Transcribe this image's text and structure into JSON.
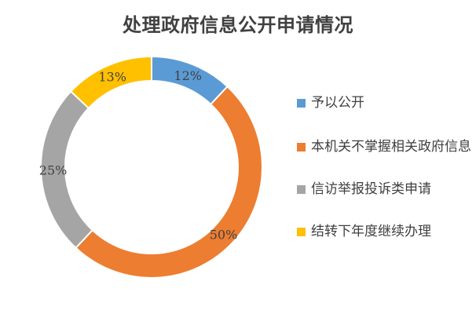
{
  "chart_data": {
    "type": "pie",
    "title": "处理政府信息公开申请情况",
    "donut": true,
    "slices": [
      {
        "label": "予以公开",
        "value": 12,
        "value_label": "12%",
        "color": "#5B9BD5"
      },
      {
        "label": "本机关不掌握相关政府信息",
        "value": 50,
        "value_label": "50%",
        "color": "#ED7D31"
      },
      {
        "label": "信访举报投诉类申请",
        "value": 25,
        "value_label": "25%",
        "color": "#A5A5A5"
      },
      {
        "label": "结转下年度继续办理",
        "value": 13,
        "value_label": "13%",
        "color": "#FFC000"
      }
    ],
    "legend_position": "right"
  }
}
